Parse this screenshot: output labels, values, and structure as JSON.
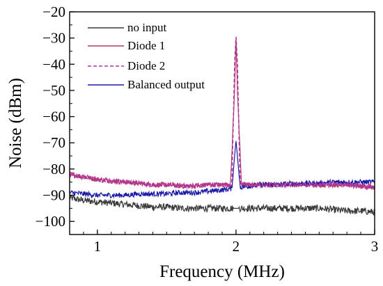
{
  "chart_data": {
    "type": "line",
    "title": "",
    "xlabel": "Frequency (MHz)",
    "ylabel": "Noise (dBm)",
    "xlim": [
      0.8,
      3.0
    ],
    "ylim": [
      -105,
      -20
    ],
    "xticks": [
      1,
      2,
      3
    ],
    "xtick_labels": [
      "1",
      "2",
      "3"
    ],
    "yticks": [
      -100,
      -90,
      -80,
      -70,
      -60,
      -50,
      -40,
      -30,
      -20
    ],
    "ytick_labels": [
      "−100",
      "−90",
      "−80",
      "−70",
      "−60",
      "−50",
      "−40",
      "−30",
      "−20"
    ],
    "grid": false,
    "legend_position": "top-left",
    "series": [
      {
        "name": "no input",
        "color": "#3a3a3a",
        "style": "solid",
        "x": [
          0.8,
          0.9,
          1.0,
          1.1,
          1.2,
          1.3,
          1.4,
          1.5,
          1.6,
          1.7,
          1.8,
          1.9,
          2.0,
          2.1,
          2.2,
          2.3,
          2.4,
          2.5,
          2.6,
          2.7,
          2.8,
          2.9,
          3.0
        ],
        "y": [
          -91,
          -92,
          -92.5,
          -93,
          -93.5,
          -94,
          -94.5,
          -94.5,
          -95,
          -95,
          -95,
          -95,
          -95,
          -95,
          -95,
          -95,
          -95,
          -95,
          -95,
          -95.5,
          -96,
          -96,
          -96.5
        ]
      },
      {
        "name": "Diode 1",
        "color": "#b0396f",
        "style": "solid",
        "x": [
          0.8,
          0.9,
          1.0,
          1.1,
          1.2,
          1.3,
          1.4,
          1.5,
          1.6,
          1.7,
          1.8,
          1.9,
          1.96,
          1.99,
          2.0,
          2.01,
          2.04,
          2.1,
          2.2,
          2.3,
          2.4,
          2.5,
          2.6,
          2.7,
          2.8,
          2.9,
          3.0
        ],
        "y": [
          -82,
          -83,
          -84,
          -84.5,
          -85,
          -85.5,
          -86,
          -86,
          -86.5,
          -86.5,
          -86,
          -86,
          -86,
          -50,
          -29,
          -50,
          -86,
          -86,
          -86,
          -86,
          -86,
          -86,
          -86,
          -86,
          -86,
          -86.5,
          -87
        ]
      },
      {
        "name": "Diode 2",
        "color": "#b5349a",
        "style": "dashed",
        "x": [
          0.8,
          0.9,
          1.0,
          1.1,
          1.2,
          1.3,
          1.4,
          1.5,
          1.6,
          1.7,
          1.8,
          1.9,
          1.97,
          1.99,
          2.0,
          2.01,
          2.03,
          2.1,
          2.2,
          2.3,
          2.4,
          2.5,
          2.6,
          2.7,
          2.8,
          2.9,
          3.0
        ],
        "y": [
          -82,
          -83,
          -84,
          -84.5,
          -85,
          -85.5,
          -86,
          -86,
          -86.5,
          -86.5,
          -86,
          -86,
          -86,
          -40,
          -29,
          -40,
          -86,
          -86,
          -86,
          -86,
          -86,
          -86,
          -86,
          -86,
          -86,
          -86.5,
          -87
        ]
      },
      {
        "name": "Balanced output",
        "color": "#1a1aa8",
        "style": "solid",
        "x": [
          0.8,
          0.9,
          1.0,
          1.1,
          1.2,
          1.3,
          1.4,
          1.5,
          1.6,
          1.7,
          1.8,
          1.9,
          1.97,
          1.99,
          2.0,
          2.01,
          2.03,
          2.1,
          2.2,
          2.3,
          2.4,
          2.5,
          2.6,
          2.7,
          2.8,
          2.9,
          3.0
        ],
        "y": [
          -89,
          -89.5,
          -90,
          -90,
          -90,
          -89.5,
          -89.5,
          -89.5,
          -89,
          -89,
          -88.5,
          -88,
          -87.5,
          -75,
          -69,
          -75,
          -87,
          -86.5,
          -86,
          -86,
          -85.5,
          -85.5,
          -85.5,
          -85,
          -85,
          -85,
          -85
        ]
      }
    ]
  }
}
